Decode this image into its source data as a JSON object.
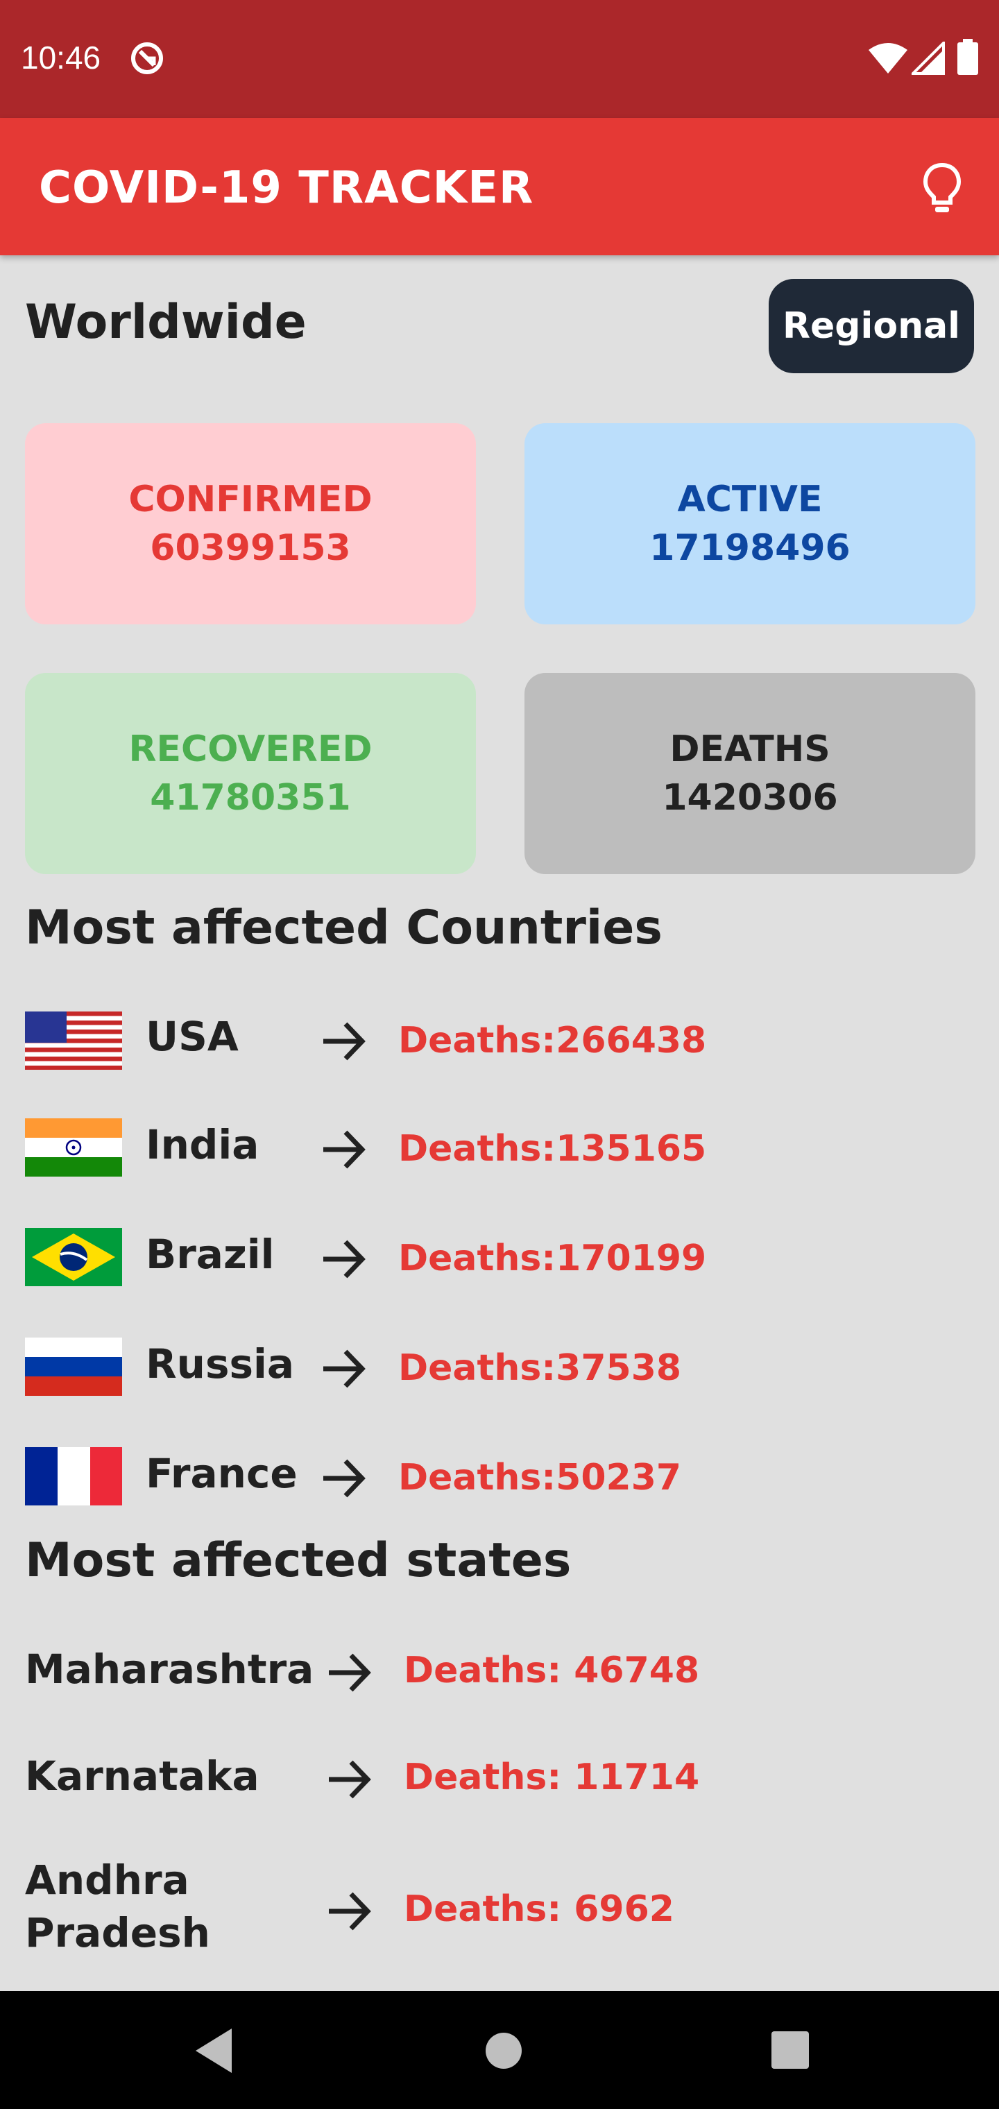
{
  "status_bar": {
    "time": "10:46"
  },
  "app_bar": {
    "title": "COVID-19 TRACKER"
  },
  "worldwide": {
    "title": "Worldwide",
    "regional_label": "Regional",
    "cards": {
      "confirmed": {
        "label": "CONFIRMED",
        "value": "60399153"
      },
      "active": {
        "label": "ACTIVE",
        "value": "17198496"
      },
      "recovered": {
        "label": "RECOVERED",
        "value": "41780351"
      },
      "deaths": {
        "label": "DEATHS",
        "value": "1420306"
      }
    }
  },
  "countries": {
    "title": "Most affected Countries",
    "items": [
      {
        "name": "USA",
        "deaths": "Deaths:266438",
        "flag": "usa-flag"
      },
      {
        "name": "India",
        "deaths": "Deaths:135165",
        "flag": "india-flag"
      },
      {
        "name": "Brazil",
        "deaths": "Deaths:170199",
        "flag": "brazil-flag"
      },
      {
        "name": "Russia",
        "deaths": "Deaths:37538",
        "flag": "russia-flag"
      },
      {
        "name": "France",
        "deaths": "Deaths:50237",
        "flag": "france-flag"
      }
    ]
  },
  "states": {
    "title": "Most affected states",
    "items": [
      {
        "name": "Maharashtra",
        "deaths": "Deaths: 46748"
      },
      {
        "name": "Karnataka",
        "deaths": "Deaths: 11714"
      },
      {
        "name": "Andhra Pradesh",
        "deaths": "Deaths: 6962"
      }
    ]
  },
  "colors": {
    "status_bar": "#ab272a",
    "app_bar": "#e53935",
    "confirmed": "#e53935",
    "active": "#0d47a1",
    "recovered": "#4caf50",
    "deaths": "#212121"
  }
}
